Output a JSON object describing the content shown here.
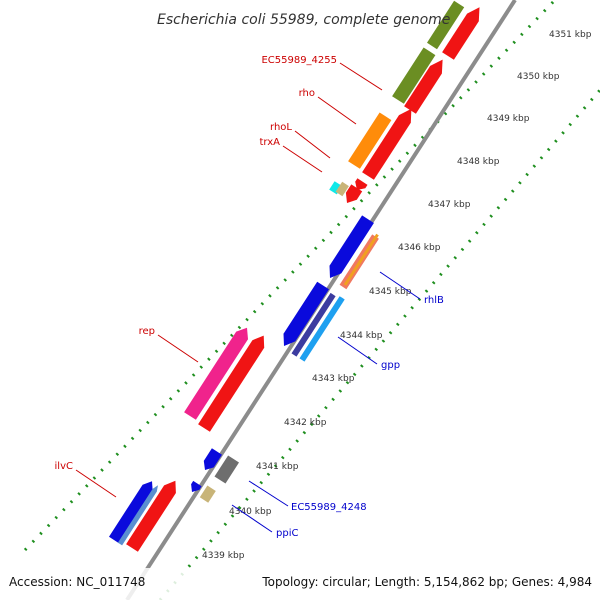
{
  "title": "Escherichia coli 55989, complete genome",
  "footer": {
    "accession": "Accession: NC_011748",
    "summary": "Topology: circular; Length: 5,154,862 bp; Genes: 4,984"
  },
  "colors": {
    "backbone": "#8c8c8c",
    "dots": "#1f8f1f",
    "label_plus": "#cc0000",
    "label_minus": "#0000cc"
  },
  "ticks": [
    "4339 kbp",
    "4340 kbp",
    "4341 kbp",
    "4342 kbp",
    "4343 kbp",
    "4344 kbp",
    "4345 kbp",
    "4346 kbp",
    "4347 kbp",
    "4348 kbp",
    "4349 kbp",
    "4350 kbp",
    "4351 kbp"
  ],
  "labels": {
    "plus": [
      "EC55989_4255",
      "rho",
      "rhoL",
      "trxA",
      "rep",
      "ilvC"
    ],
    "minus": [
      "rhlB",
      "gpp",
      "EC55989_4248",
      "ppiC"
    ]
  }
}
